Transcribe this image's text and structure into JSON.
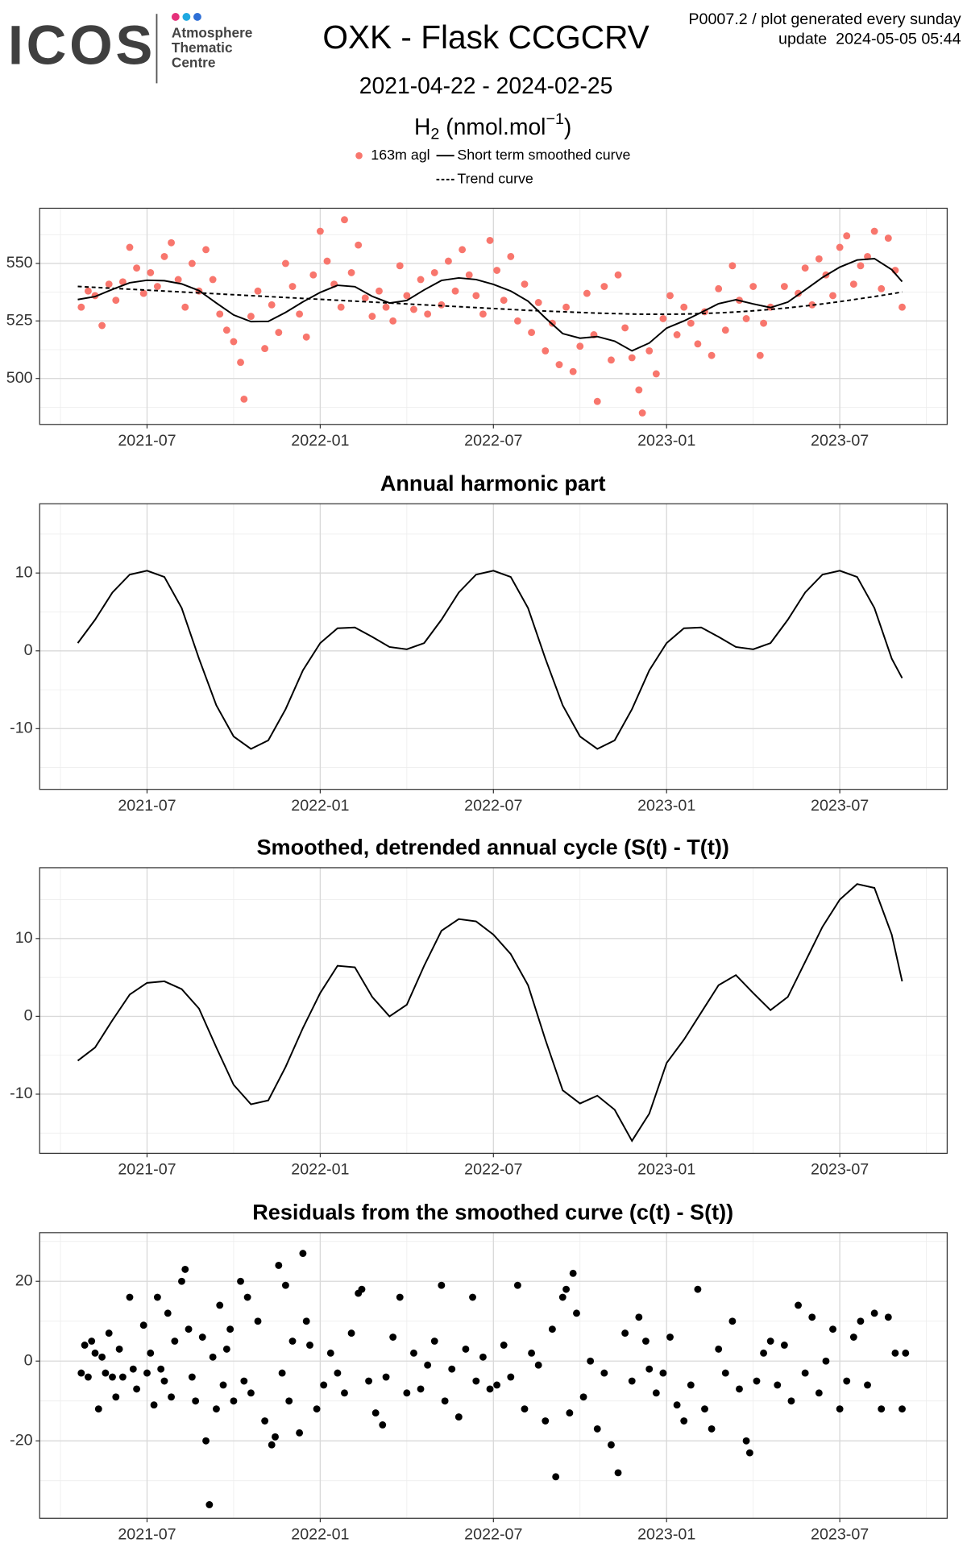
{
  "header": {
    "logo": "ICOS",
    "logo_lines": [
      "Atmosphere",
      "Thematic",
      "Centre"
    ],
    "title": "OXK - Flask CCGCRV",
    "subtitle": "2021-04-22 - 2024-02-25",
    "note": [
      "P0007.2 / plot generated every sunday",
      "update  2024-05-05 05:44"
    ]
  },
  "chart_data": [
    {
      "type": "scatter",
      "ylabel": {
        "main": "H",
        "sub": "2",
        "unit": " (nmol.mol",
        "sup": "−1",
        "close": ")"
      },
      "xlim": [
        2021.19,
        2023.81
      ],
      "xticks": [
        {
          "value": 2021.5,
          "label": "2021-07"
        },
        {
          "value": 2022,
          "label": "2022-01"
        },
        {
          "value": 2022.5,
          "label": "2022-07"
        },
        {
          "value": 2023,
          "label": "2023-01"
        },
        {
          "value": 2023.5,
          "label": "2023-07"
        }
      ],
      "ylim": [
        480,
        574
      ],
      "yticks": [
        500,
        525,
        550
      ],
      "grid": true,
      "series": [
        {
          "name": "163m agl",
          "type": "scatter",
          "color": "#f8766d",
          "x": [
            2021.31,
            2021.33,
            2021.35,
            2021.37,
            2021.39,
            2021.41,
            2021.43,
            2021.45,
            2021.47,
            2021.49,
            2021.51,
            2021.53,
            2021.55,
            2021.57,
            2021.59,
            2021.61,
            2021.63,
            2021.65,
            2021.67,
            2021.69,
            2021.71,
            2021.73,
            2021.75,
            2021.77,
            2021.78,
            2021.8,
            2021.82,
            2021.84,
            2021.86,
            2021.88,
            2021.9,
            2021.92,
            2021.94,
            2021.96,
            2021.98,
            2022,
            2022.02,
            2022.04,
            2022.06,
            2022.07,
            2022.09,
            2022.11,
            2022.13,
            2022.15,
            2022.17,
            2022.19,
            2022.21,
            2022.23,
            2022.25,
            2022.27,
            2022.29,
            2022.31,
            2022.33,
            2022.35,
            2022.37,
            2022.39,
            2022.41,
            2022.43,
            2022.45,
            2022.47,
            2022.49,
            2022.51,
            2022.53,
            2022.55,
            2022.57,
            2022.59,
            2022.61,
            2022.63,
            2022.65,
            2022.67,
            2022.69,
            2022.71,
            2022.73,
            2022.75,
            2022.77,
            2022.79,
            2022.8,
            2022.82,
            2022.84,
            2022.86,
            2022.88,
            2022.9,
            2022.92,
            2022.93,
            2022.95,
            2022.97,
            2022.99,
            2023.01,
            2023.03,
            2023.05,
            2023.07,
            2023.09,
            2023.11,
            2023.13,
            2023.15,
            2023.17,
            2023.19,
            2023.21,
            2023.23,
            2023.25,
            2023.27,
            2023.28,
            2023.3,
            2023.34,
            2023.38,
            2023.4,
            2023.42,
            2023.44,
            2023.46,
            2023.48,
            2023.5,
            2023.52,
            2023.54,
            2023.56,
            2023.58,
            2023.6,
            2023.62,
            2023.64,
            2023.66,
            2023.68
          ],
          "values": [
            531,
            538,
            536,
            523,
            541,
            534,
            542,
            557,
            548,
            537,
            546,
            540,
            553,
            559,
            543,
            531,
            550,
            538,
            556,
            543,
            528,
            521,
            516,
            507,
            491,
            527,
            538,
            513,
            532,
            520,
            550,
            540,
            528,
            518,
            545,
            564,
            551,
            541,
            531,
            569,
            546,
            558,
            535,
            527,
            538,
            531,
            525,
            549,
            536,
            530,
            543,
            528,
            546,
            532,
            551,
            538,
            556,
            545,
            536,
            528,
            560,
            547,
            534,
            553,
            525,
            541,
            520,
            533,
            512,
            524,
            506,
            531,
            503,
            514,
            537,
            519,
            490,
            540,
            508,
            545,
            522,
            509,
            495,
            485,
            512,
            502,
            526,
            536,
            519,
            531,
            524,
            515,
            529,
            510,
            539,
            521,
            549,
            534,
            526,
            540,
            510,
            524,
            531,
            540,
            537,
            548,
            532,
            552,
            545,
            536,
            557,
            562,
            541,
            549,
            553,
            564,
            539,
            561,
            547,
            531
          ]
        },
        {
          "name": "Short term smoothed curve",
          "type": "line",
          "color": "#000000",
          "dash": false,
          "x": [
            2021.3,
            2021.35,
            2021.4,
            2021.45,
            2021.5,
            2021.55,
            2021.6,
            2021.65,
            2021.7,
            2021.75,
            2021.8,
            2021.85,
            2021.9,
            2021.95,
            2022,
            2022.05,
            2022.1,
            2022.15,
            2022.2,
            2022.25,
            2022.3,
            2022.35,
            2022.4,
            2022.45,
            2022.5,
            2022.55,
            2022.6,
            2022.65,
            2022.7,
            2022.75,
            2022.8,
            2022.85,
            2022.9,
            2022.95,
            2023,
            2023.05,
            2023.1,
            2023.15,
            2023.2,
            2023.25,
            2023.3,
            2023.35,
            2023.4,
            2023.45,
            2023.5,
            2023.55,
            2023.6,
            2023.65,
            2023.68
          ],
          "values": [
            534.3,
            535.6,
            538.7,
            541.6,
            542.7,
            542.5,
            541.1,
            538.2,
            532.8,
            527.6,
            524.7,
            524.8,
            528.7,
            533.3,
            537.4,
            540.5,
            539.9,
            535.7,
            532.8,
            533.9,
            538.5,
            542.6,
            543.7,
            543,
            540.9,
            538,
            533.6,
            526.3,
            519.5,
            517.5,
            518.2,
            516.2,
            512,
            515.4,
            521.9,
            525,
            528.7,
            532.5,
            534.2,
            532.4,
            530.8,
            533.2,
            538.5,
            543.9,
            548.4,
            551.5,
            552.1,
            547.3,
            542.1
          ]
        },
        {
          "name": "Trend curve",
          "type": "line",
          "color": "#000000",
          "dash": true,
          "x": [
            2021.3,
            2021.35,
            2021.4,
            2021.45,
            2021.5,
            2021.55,
            2021.6,
            2021.65,
            2021.7,
            2021.75,
            2021.8,
            2021.85,
            2021.9,
            2021.95,
            2022,
            2022.05,
            2022.1,
            2022.15,
            2022.2,
            2022.25,
            2022.3,
            2022.35,
            2022.4,
            2022.45,
            2022.5,
            2022.55,
            2022.6,
            2022.65,
            2022.7,
            2022.75,
            2022.8,
            2022.85,
            2022.9,
            2022.95,
            2023,
            2023.05,
            2023.1,
            2023.15,
            2023.2,
            2023.25,
            2023.3,
            2023.35,
            2023.4,
            2023.45,
            2023.5,
            2023.55,
            2023.6,
            2023.65,
            2023.68
          ],
          "values": [
            540,
            539.6,
            539.2,
            538.8,
            538.4,
            538,
            537.6,
            537.2,
            536.8,
            536.4,
            536,
            535.6,
            535.2,
            534.8,
            534.4,
            534,
            533.6,
            533.2,
            532.8,
            532.4,
            532,
            531.6,
            531.2,
            530.8,
            530.4,
            530,
            529.6,
            529.3,
            529,
            528.7,
            528.4,
            528.2,
            528,
            527.9,
            527.9,
            528,
            528.2,
            528.5,
            528.9,
            529.4,
            530,
            530.7,
            531.5,
            532.4,
            533.4,
            534.5,
            535.6,
            536.8,
            537.6
          ]
        }
      ]
    },
    {
      "type": "line",
      "title": "Annual harmonic part",
      "color": "#000000",
      "xlim": [
        2021.19,
        2023.81
      ],
      "xticks": [
        {
          "value": 2021.5,
          "label": "2021-07"
        },
        {
          "value": 2022,
          "label": "2022-01"
        },
        {
          "value": 2022.5,
          "label": "2022-07"
        },
        {
          "value": 2023,
          "label": "2023-01"
        },
        {
          "value": 2023.5,
          "label": "2023-07"
        }
      ],
      "ylim": [
        -17.8,
        18.9
      ],
      "yticks": [
        -10,
        0,
        10
      ],
      "grid": true,
      "x": [
        2021.3,
        2021.35,
        2021.4,
        2021.45,
        2021.5,
        2021.55,
        2021.6,
        2021.65,
        2021.7,
        2021.75,
        2021.8,
        2021.85,
        2021.9,
        2021.95,
        2022,
        2022.05,
        2022.1,
        2022.15,
        2022.2,
        2022.25,
        2022.3,
        2022.35,
        2022.4,
        2022.45,
        2022.5,
        2022.55,
        2022.6,
        2022.65,
        2022.7,
        2022.75,
        2022.8,
        2022.85,
        2022.9,
        2022.95,
        2023,
        2023.05,
        2023.1,
        2023.15,
        2023.2,
        2023.25,
        2023.3,
        2023.35,
        2023.4,
        2023.45,
        2023.5,
        2023.55,
        2023.6,
        2023.65,
        2023.68
      ],
      "values": [
        1,
        4,
        7.5,
        9.8,
        10.3,
        9.5,
        5.5,
        -1,
        -7,
        -11,
        -12.6,
        -11.5,
        -7.5,
        -2.5,
        1,
        2.9,
        3,
        1.8,
        0.5,
        0.2,
        1,
        4,
        7.5,
        9.8,
        10.3,
        9.5,
        5.5,
        -1,
        -7,
        -11,
        -12.6,
        -11.5,
        -7.5,
        -2.5,
        1,
        2.9,
        3,
        1.8,
        0.5,
        0.2,
        1,
        4,
        7.5,
        9.8,
        10.3,
        9.5,
        5.5,
        -1,
        -3.5
      ]
    },
    {
      "type": "line",
      "title": "Smoothed, detrended annual cycle (S(t) - T(t))",
      "color": "#000000",
      "xlim": [
        2021.19,
        2023.81
      ],
      "xticks": [
        {
          "value": 2021.5,
          "label": "2021-07"
        },
        {
          "value": 2022,
          "label": "2022-01"
        },
        {
          "value": 2022.5,
          "label": "2022-07"
        },
        {
          "value": 2023,
          "label": "2023-01"
        },
        {
          "value": 2023.5,
          "label": "2023-07"
        }
      ],
      "ylim": [
        -17.6,
        19.1
      ],
      "yticks": [
        -10,
        0,
        10
      ],
      "grid": true,
      "x": [
        2021.3,
        2021.35,
        2021.4,
        2021.45,
        2021.5,
        2021.55,
        2021.6,
        2021.65,
        2021.7,
        2021.75,
        2021.8,
        2021.85,
        2021.9,
        2021.95,
        2022,
        2022.05,
        2022.1,
        2022.15,
        2022.2,
        2022.25,
        2022.3,
        2022.35,
        2022.4,
        2022.45,
        2022.5,
        2022.55,
        2022.6,
        2022.65,
        2022.7,
        2022.75,
        2022.8,
        2022.85,
        2022.9,
        2022.95,
        2023,
        2023.05,
        2023.1,
        2023.15,
        2023.2,
        2023.25,
        2023.3,
        2023.35,
        2023.4,
        2023.45,
        2023.5,
        2023.55,
        2023.6,
        2023.65,
        2023.68
      ],
      "values": [
        -5.7,
        -4,
        -0.5,
        2.8,
        4.3,
        4.5,
        3.5,
        1,
        -4,
        -8.8,
        -11.3,
        -10.8,
        -6.5,
        -1.5,
        3,
        6.5,
        6.3,
        2.5,
        0,
        1.5,
        6.5,
        11,
        12.5,
        12.2,
        10.5,
        8,
        4,
        -3,
        -9.5,
        -11.2,
        -10.2,
        -12,
        -16,
        -12.5,
        -6,
        -3,
        0.5,
        4,
        5.3,
        3,
        0.8,
        2.5,
        7,
        11.5,
        15,
        17,
        16.5,
        10.5,
        4.5
      ]
    },
    {
      "type": "scatter",
      "title": "Residuals from the smoothed curve (c(t) - S(t))",
      "color": "#000000",
      "xlim": [
        2021.19,
        2023.81
      ],
      "xticks": [
        {
          "value": 2021.5,
          "label": "2021-07"
        },
        {
          "value": 2022,
          "label": "2022-01"
        },
        {
          "value": 2022.5,
          "label": "2022-07"
        },
        {
          "value": 2023,
          "label": "2023-01"
        },
        {
          "value": 2023.5,
          "label": "2023-07"
        }
      ],
      "ylim": [
        -39.4,
        32.2
      ],
      "yticks": [
        -20,
        0,
        20
      ],
      "grid": true,
      "x": [
        2021.31,
        2021.32,
        2021.33,
        2021.34,
        2021.35,
        2021.36,
        2021.37,
        2021.38,
        2021.39,
        2021.4,
        2021.41,
        2021.42,
        2021.43,
        2021.45,
        2021.46,
        2021.47,
        2021.49,
        2021.5,
        2021.51,
        2021.52,
        2021.53,
        2021.54,
        2021.55,
        2021.56,
        2021.57,
        2021.58,
        2021.6,
        2021.61,
        2021.62,
        2021.63,
        2021.64,
        2021.66,
        2021.67,
        2021.68,
        2021.69,
        2021.7,
        2021.71,
        2021.72,
        2021.73,
        2021.74,
        2021.75,
        2021.77,
        2021.78,
        2021.79,
        2021.8,
        2021.82,
        2021.84,
        2021.86,
        2021.87,
        2021.88,
        2021.89,
        2021.9,
        2021.91,
        2021.92,
        2021.94,
        2021.95,
        2021.96,
        2021.97,
        2021.99,
        2022.01,
        2022.03,
        2022.05,
        2022.07,
        2022.09,
        2022.11,
        2022.12,
        2022.14,
        2022.16,
        2022.18,
        2022.19,
        2022.21,
        2022.23,
        2022.25,
        2022.27,
        2022.29,
        2022.31,
        2022.33,
        2022.35,
        2022.36,
        2022.38,
        2022.4,
        2022.42,
        2022.44,
        2022.45,
        2022.47,
        2022.49,
        2022.51,
        2022.53,
        2022.55,
        2022.57,
        2022.59,
        2022.61,
        2022.63,
        2022.65,
        2022.67,
        2022.68,
        2022.7,
        2022.71,
        2022.72,
        2022.73,
        2022.74,
        2022.76,
        2022.78,
        2022.8,
        2022.82,
        2022.84,
        2022.86,
        2022.88,
        2022.9,
        2022.92,
        2022.94,
        2022.95,
        2022.97,
        2022.99,
        2023.01,
        2023.03,
        2023.05,
        2023.07,
        2023.09,
        2023.11,
        2023.13,
        2023.15,
        2023.17,
        2023.19,
        2023.21,
        2023.23,
        2023.24,
        2023.26,
        2023.28,
        2023.3,
        2023.32,
        2023.34,
        2023.36,
        2023.38,
        2023.4,
        2023.42,
        2023.44,
        2023.46,
        2023.48,
        2023.5,
        2023.52,
        2023.54,
        2023.56,
        2023.58,
        2023.6,
        2023.62,
        2023.64,
        2023.66,
        2023.68,
        2023.69
      ],
      "values": [
        -3,
        4,
        -4,
        5,
        2,
        -12,
        1,
        -3,
        7,
        -4,
        -9,
        3,
        -4,
        16,
        -2,
        -7,
        9,
        -3,
        2,
        -11,
        16,
        -2,
        -5,
        12,
        -9,
        5,
        20,
        23,
        8,
        -4,
        -10,
        6,
        -20,
        -36,
        1,
        -12,
        14,
        -6,
        3,
        8,
        -10,
        20,
        -5,
        16,
        -8,
        10,
        -15,
        -21,
        -19,
        24,
        -3,
        19,
        -10,
        5,
        -18,
        27,
        10,
        4,
        -12,
        -6,
        2,
        -3,
        -8,
        7,
        17,
        18,
        -5,
        -13,
        -16,
        -4,
        6,
        16,
        -8,
        2,
        -7,
        -1,
        5,
        19,
        -10,
        -2,
        -14,
        3,
        16,
        -5,
        1,
        -7,
        -6,
        4,
        -4,
        19,
        -12,
        2,
        -1,
        -15,
        8,
        -29,
        16,
        18,
        -13,
        22,
        12,
        -9,
        0,
        -17,
        -3,
        -21,
        -28,
        7,
        -5,
        11,
        5,
        -2,
        -8,
        -3,
        6,
        -11,
        -15,
        -6,
        18,
        -12,
        -17,
        3,
        -3,
        10,
        -7,
        -20,
        -23,
        -5,
        2,
        5,
        -6,
        4,
        -10,
        14,
        -3,
        11,
        -8,
        0,
        8,
        -12,
        -5,
        6,
        10,
        -6,
        12,
        -12,
        11,
        2,
        -12,
        2
      ]
    }
  ]
}
